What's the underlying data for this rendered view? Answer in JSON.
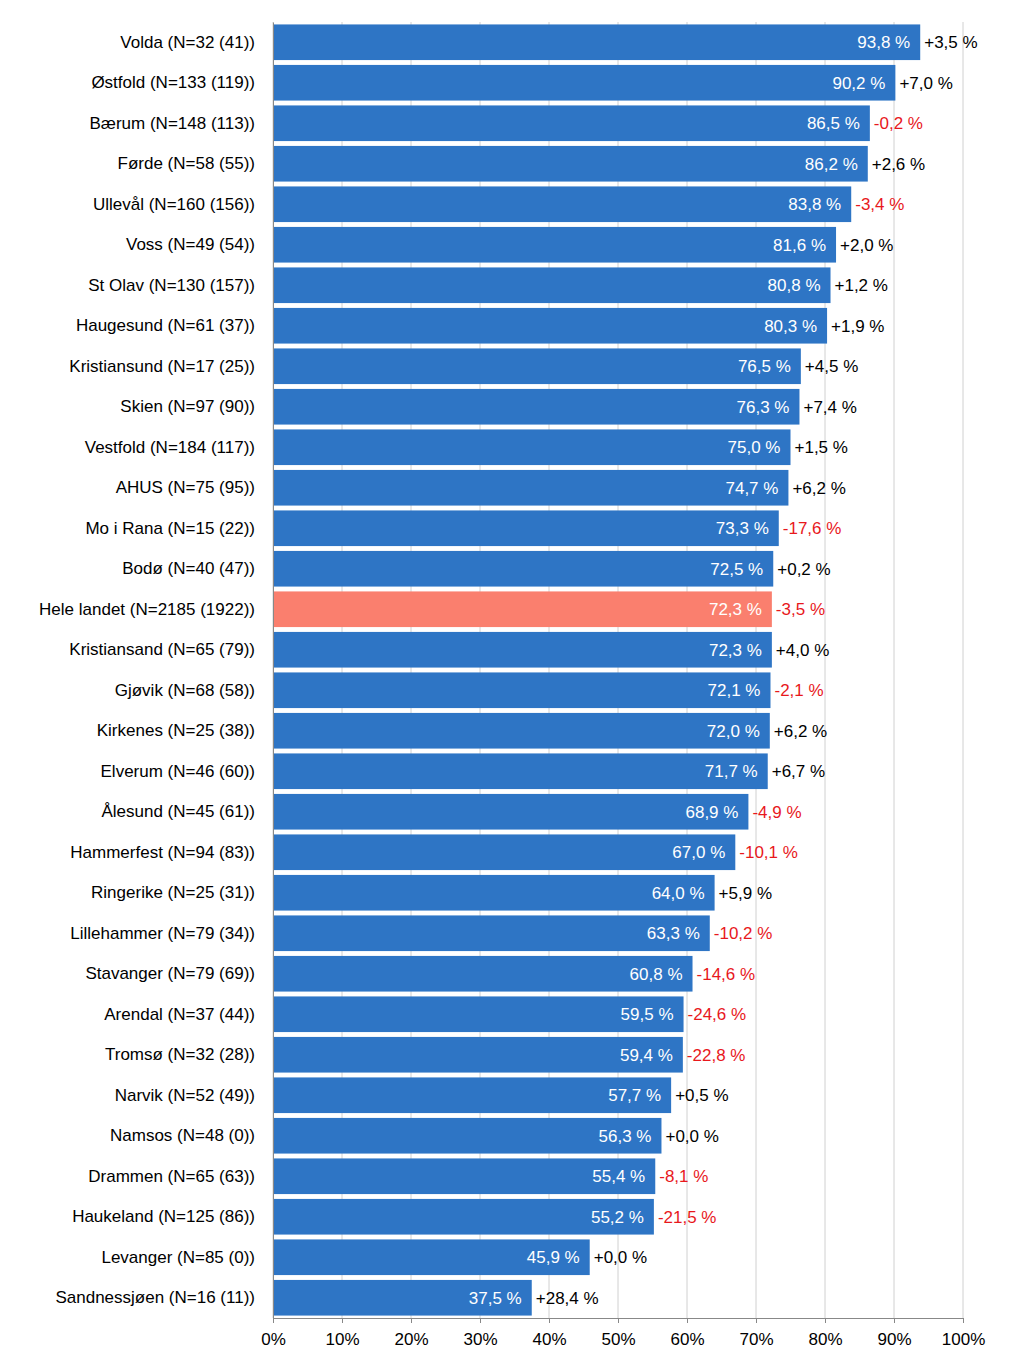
{
  "chart_data": {
    "type": "bar",
    "orientation": "horizontal",
    "categories": [
      "Volda (N=32 (41))",
      "Østfold (N=133 (119))",
      "Bærum (N=148 (113))",
      "Førde (N=58 (55))",
      "Ullevål (N=160 (156))",
      "Voss (N=49 (54))",
      "St Olav (N=130 (157))",
      "Haugesund (N=61 (37))",
      "Kristiansund (N=17 (25))",
      "Skien (N=97 (90))",
      "Vestfold (N=184 (117))",
      "AHUS (N=75 (95))",
      "Mo i Rana (N=15 (22))",
      "Bodø (N=40 (47))",
      "Hele landet (N=2185 (1922))",
      "Kristiansand (N=65 (79))",
      "Gjøvik (N=68 (58))",
      "Kirkenes (N=25 (38))",
      "Elverum (N=46 (60))",
      "Ålesund (N=45 (61))",
      "Hammerfest (N=94 (83))",
      "Ringerike (N=25 (31))",
      "Lillehammer (N=79 (34))",
      "Stavanger (N=79 (69))",
      "Arendal (N=37 (44))",
      "Tromsø (N=32 (28))",
      "Narvik (N=52 (49))",
      "Namsos (N=48 (0))",
      "Drammen (N=65 (63))",
      "Haukeland (N=125 (86))",
      "Levanger (N=85 (0))",
      "Sandnessjøen (N=16 (11))"
    ],
    "values": [
      93.8,
      90.2,
      86.5,
      86.2,
      83.8,
      81.6,
      80.8,
      80.3,
      76.5,
      76.3,
      75.0,
      74.7,
      73.3,
      72.5,
      72.3,
      72.3,
      72.1,
      72.0,
      71.7,
      68.9,
      67.0,
      64.0,
      63.3,
      60.8,
      59.5,
      59.4,
      57.7,
      56.3,
      55.4,
      55.2,
      45.9,
      37.5
    ],
    "value_labels": [
      "93,8 %",
      "90,2 %",
      "86,5 %",
      "86,2 %",
      "83,8 %",
      "81,6 %",
      "80,8 %",
      "80,3 %",
      "76,5 %",
      "76,3 %",
      "75,0 %",
      "74,7 %",
      "73,3 %",
      "72,5 %",
      "72,3 %",
      "72,3 %",
      "72,1 %",
      "72,0 %",
      "71,7 %",
      "68,9 %",
      "67,0 %",
      "64,0 %",
      "63,3 %",
      "60,8 %",
      "59,5 %",
      "59,4 %",
      "57,7 %",
      "56,3 %",
      "55,4 %",
      "55,2 %",
      "45,9 %",
      "37,5 %"
    ],
    "change_values": [
      3.5,
      7.0,
      -0.2,
      2.6,
      -3.4,
      2.0,
      1.2,
      1.9,
      4.5,
      7.4,
      1.5,
      6.2,
      -17.6,
      0.2,
      -3.5,
      4.0,
      -2.1,
      6.2,
      6.7,
      -4.9,
      -10.1,
      5.9,
      -10.2,
      -14.6,
      -24.6,
      -22.8,
      0.5,
      0.0,
      -8.1,
      -21.5,
      0.0,
      28.4
    ],
    "change_labels": [
      "+3,5 %",
      "+7,0 %",
      "-0,2 %",
      "+2,6 %",
      "-3,4 %",
      "+2,0 %",
      "+1,2 %",
      "+1,9 %",
      "+4,5 %",
      "+7,4 %",
      "+1,5 %",
      "+6,2 %",
      "-17,6 %",
      "+0,2 %",
      "-3,5 %",
      "+4,0 %",
      "-2,1 %",
      "+6,2 %",
      "+6,7 %",
      "-4,9 %",
      "-10,1 %",
      "+5,9 %",
      "-10,2 %",
      "-14,6 %",
      "-24,6 %",
      "-22,8 %",
      "+0,5 %",
      "+0,0 %",
      "-8,1 %",
      "-21,5 %",
      "+0,0 %",
      "+28,4 %"
    ],
    "colors": [
      "#2e75c5",
      "#2e75c5",
      "#2e75c5",
      "#2e75c5",
      "#2e75c5",
      "#2e75c5",
      "#2e75c5",
      "#2e75c5",
      "#2e75c5",
      "#2e75c5",
      "#2e75c5",
      "#2e75c5",
      "#2e75c5",
      "#2e75c5",
      "#fa7f6e",
      "#2e75c5",
      "#2e75c5",
      "#2e75c5",
      "#2e75c5",
      "#2e75c5",
      "#2e75c5",
      "#2e75c5",
      "#2e75c5",
      "#2e75c5",
      "#2e75c5",
      "#2e75c5",
      "#2e75c5",
      "#2e75c5",
      "#2e75c5",
      "#2e75c5",
      "#2e75c5",
      "#2e75c5"
    ],
    "xlim": [
      0,
      100
    ],
    "xticks": [
      {
        "value": 0,
        "label": "0%"
      },
      {
        "value": 10,
        "label": "10%"
      },
      {
        "value": 20,
        "label": "20%"
      },
      {
        "value": 30,
        "label": "30%"
      },
      {
        "value": 40,
        "label": "40%"
      },
      {
        "value": 50,
        "label": "50%"
      },
      {
        "value": 60,
        "label": "60%"
      },
      {
        "value": 70,
        "label": "70%"
      },
      {
        "value": 80,
        "label": "80%"
      },
      {
        "value": 90,
        "label": "90%"
      },
      {
        "value": 100,
        "label": "100%"
      }
    ],
    "grid": true,
    "data_labels": true
  }
}
